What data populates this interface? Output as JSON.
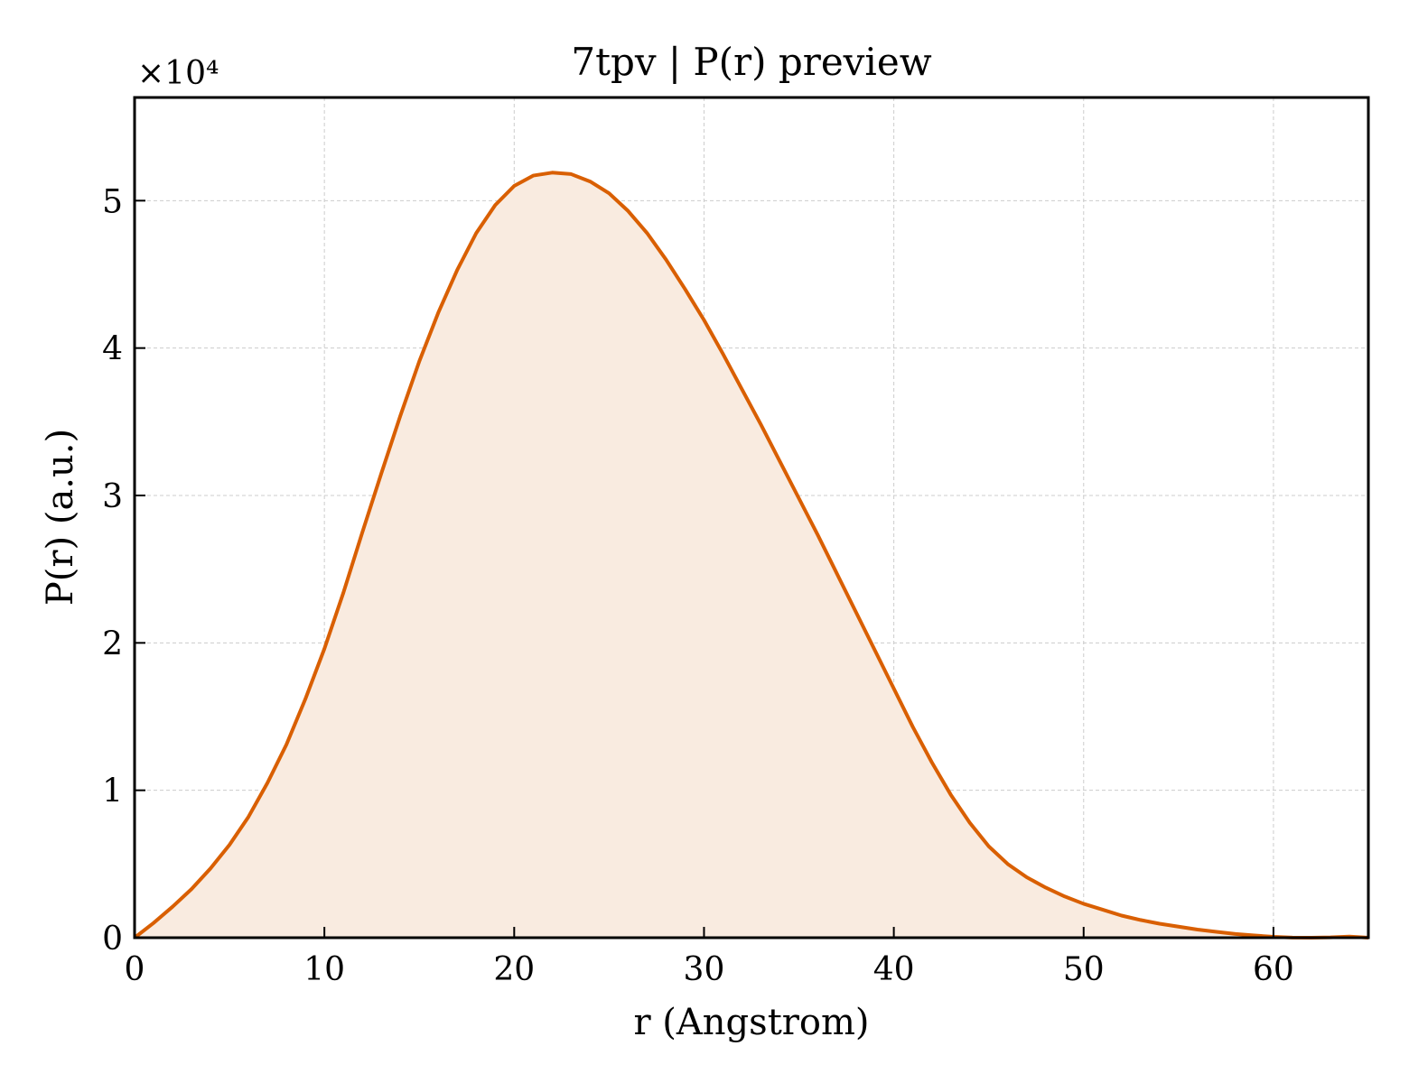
{
  "chart_data": {
    "type": "area",
    "title": "7tpv | P(r) preview",
    "xlabel": "r (Angstrom)",
    "ylabel": "P(r) (a.u.)",
    "y_scale_label": "×10⁴",
    "y_scale_factor": 10000,
    "xlim": [
      0,
      65
    ],
    "ylim": [
      0,
      57000
    ],
    "x_ticks": [
      0,
      10,
      20,
      30,
      40,
      50,
      60
    ],
    "x_tick_labels": [
      "0",
      "10",
      "20",
      "30",
      "40",
      "50",
      "60"
    ],
    "y_ticks": [
      0,
      10000,
      20000,
      30000,
      40000,
      50000
    ],
    "y_tick_labels": [
      "0",
      "1",
      "2",
      "3",
      "4",
      "5"
    ],
    "grid": true,
    "line_color": "#d95f02",
    "fill_color": "#f9ebe0",
    "series": [
      {
        "x": [
          0,
          1,
          2,
          3,
          4,
          5,
          6,
          7,
          8,
          9,
          10,
          11,
          12,
          13,
          14,
          15,
          16,
          17,
          18,
          19,
          20,
          21,
          22,
          23,
          24,
          25,
          26,
          27,
          28,
          29,
          30,
          31,
          32,
          33,
          34,
          35,
          36,
          37,
          38,
          39,
          40,
          41,
          42,
          43,
          44,
          45,
          46,
          47,
          48,
          49,
          50,
          51,
          52,
          53,
          54,
          55,
          56,
          57,
          58,
          59,
          60,
          61,
          62,
          63,
          64,
          65
        ],
        "y": [
          0,
          1000,
          2100,
          3300,
          4700,
          6300,
          8200,
          10500,
          13100,
          16200,
          19600,
          23400,
          27500,
          31500,
          35400,
          39100,
          42400,
          45300,
          47800,
          49700,
          51000,
          51700,
          51900,
          51800,
          51300,
          50500,
          49300,
          47800,
          46000,
          44000,
          41900,
          39600,
          37200,
          34800,
          32300,
          29800,
          27300,
          24700,
          22100,
          19500,
          16900,
          14300,
          11900,
          9700,
          7800,
          6200,
          5000,
          4100,
          3400,
          2800,
          2300,
          1900,
          1500,
          1200,
          950,
          750,
          550,
          400,
          250,
          150,
          60,
          10,
          0,
          20,
          80,
          0
        ]
      }
    ]
  }
}
